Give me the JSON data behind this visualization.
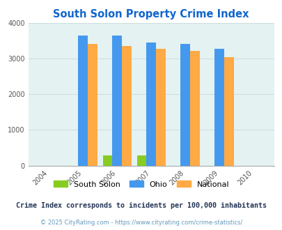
{
  "title": "South Solon Property Crime Index",
  "years": [
    2005,
    2006,
    2007,
    2008,
    2009
  ],
  "xlim": [
    2003.4,
    2010.6
  ],
  "xticks": [
    2004,
    2005,
    2006,
    2007,
    2008,
    2009,
    2010
  ],
  "ylim": [
    0,
    4000
  ],
  "yticks": [
    0,
    1000,
    2000,
    3000,
    4000
  ],
  "south_solon": [
    0,
    290,
    290,
    0,
    0
  ],
  "ohio": [
    3650,
    3650,
    3450,
    3420,
    3270
  ],
  "national": [
    3420,
    3350,
    3280,
    3210,
    3040
  ],
  "bar_width": 0.28,
  "colors": {
    "south_solon": "#88cc22",
    "ohio": "#4499ee",
    "national": "#ffaa44"
  },
  "bg_color": "#e4f2f2",
  "legend_labels": [
    "South Solon",
    "Ohio",
    "National"
  ],
  "note": "Crime Index corresponds to incidents per 100,000 inhabitants",
  "copyright": "© 2025 CityRating.com - https://www.cityrating.com/crime-statistics/",
  "title_color": "#1166cc",
  "note_color": "#223355",
  "copyright_color": "#6699bb"
}
